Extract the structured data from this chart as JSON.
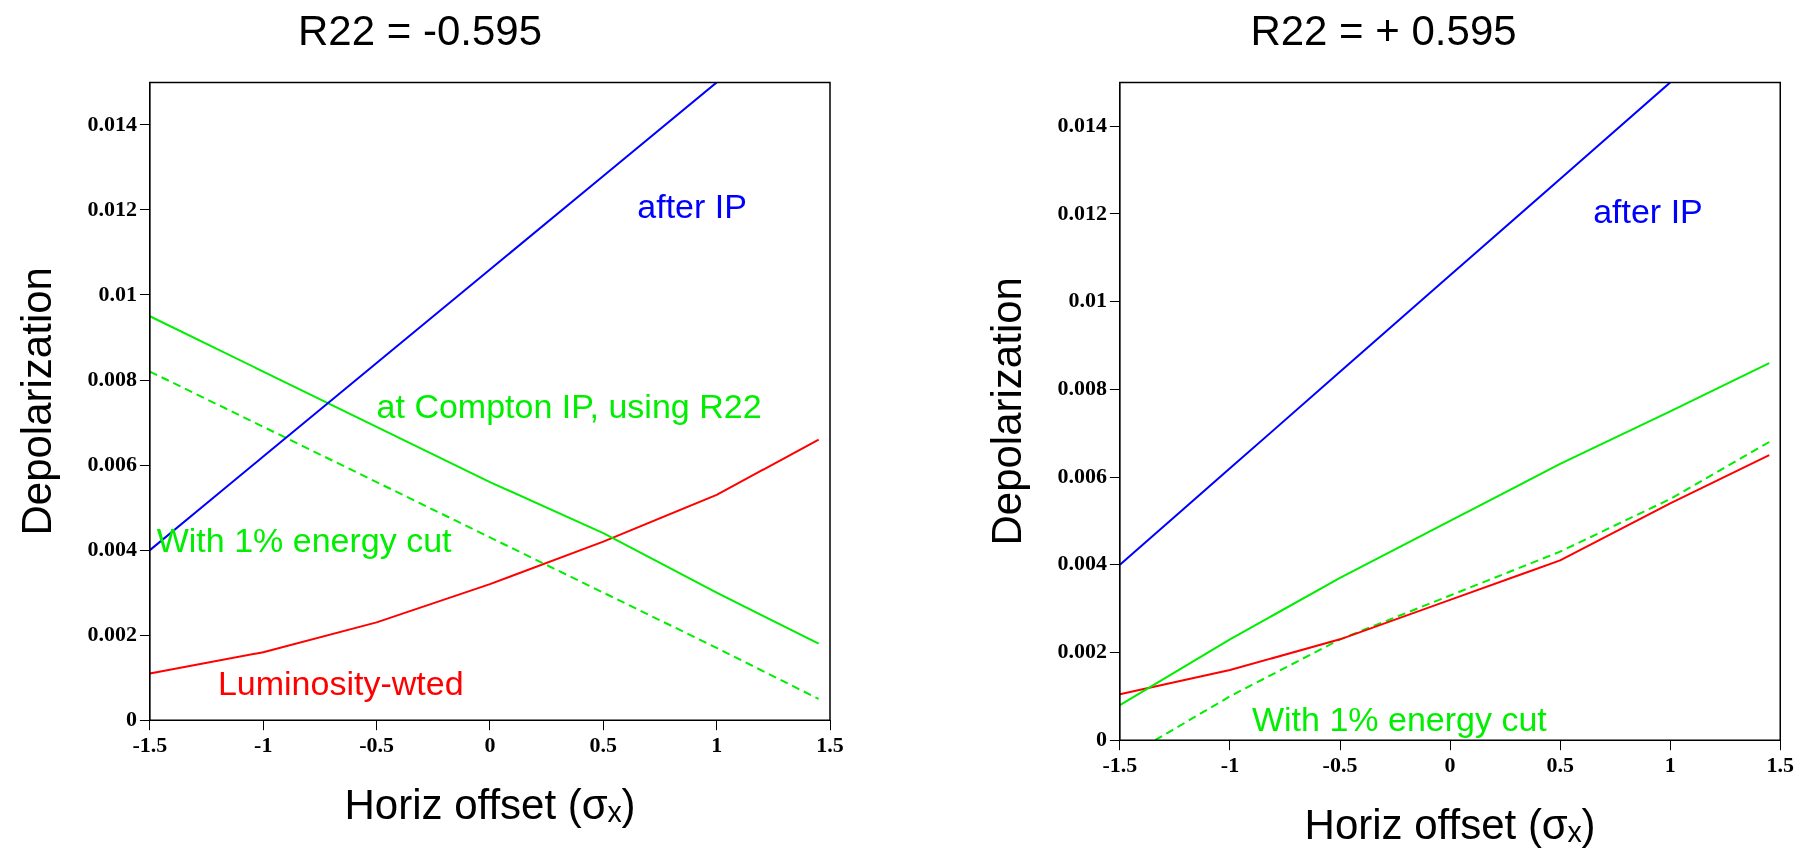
{
  "chart_data": [
    {
      "type": "line",
      "title": "R22 = -0.595",
      "xlabel": "Horiz offset (σₓ)",
      "ylabel": "Depolarization",
      "xlim": [
        -1.5,
        1.5
      ],
      "xticks": [
        -1.5,
        -1,
        -0.5,
        0,
        0.5,
        1,
        1.5
      ],
      "ylim": [
        0,
        0.015
      ],
      "yticks": [
        0,
        0.002,
        0.004,
        0.006,
        0.008,
        0.01,
        0.012,
        0.014
      ],
      "grid": false,
      "legend": false,
      "marker": "none",
      "series": [
        {
          "name": "after IP",
          "color": "#0000ff",
          "x": [
            -1.5,
            -1,
            -0.5,
            0,
            0.5,
            1
          ],
          "values": [
            0.004,
            0.0062,
            0.0084,
            0.0106,
            0.0128,
            0.015
          ]
        },
        {
          "name": "at Compton IP, using R22",
          "color": "#00ee00",
          "x": [
            -1.5,
            -1,
            -0.5,
            0,
            0.5,
            1,
            1.45
          ],
          "values": [
            0.0095,
            0.0082,
            0.0069,
            0.0056,
            0.0044,
            0.003,
            0.0018
          ]
        },
        {
          "name": "With 1% energy cut",
          "color": "#00ee00",
          "line_style": "dashed",
          "x": [
            -1.5,
            -1,
            -0.5,
            0,
            0.5,
            1,
            1.45
          ],
          "values": [
            0.0082,
            0.0069,
            0.0056,
            0.0043,
            0.003,
            0.0017,
            0.0005
          ]
        },
        {
          "name": "Luminosity-wted",
          "color": "#ff0000",
          "x": [
            -1.5,
            -1,
            -0.5,
            0,
            0.5,
            1,
            1.45
          ],
          "values": [
            0.0011,
            0.0016,
            0.0023,
            0.0032,
            0.0042,
            0.0053,
            0.0066
          ]
        }
      ]
    },
    {
      "type": "line",
      "title": "R22 = + 0.595",
      "xlabel": "Horiz offset (σₓ)",
      "ylabel": "Depolarization",
      "xlim": [
        -1.5,
        1.5
      ],
      "xticks": [
        -1.5,
        -1,
        -0.5,
        0,
        0.5,
        1,
        1.5
      ],
      "ylim": [
        0,
        0.015
      ],
      "yticks": [
        0,
        0.002,
        0.004,
        0.006,
        0.008,
        0.01,
        0.012,
        0.014
      ],
      "grid": false,
      "legend": false,
      "marker": "none",
      "series": [
        {
          "name": "after IP",
          "color": "#0000ff",
          "x": [
            -1.5,
            -1,
            -0.5,
            0,
            0.5,
            1
          ],
          "values": [
            0.004,
            0.0062,
            0.0084,
            0.0106,
            0.0128,
            0.015
          ]
        },
        {
          "color": "#00ee00",
          "x": [
            -1.5,
            -1,
            -0.5,
            0,
            0.5,
            1,
            1.45
          ],
          "values": [
            0.0008,
            0.0023,
            0.0037,
            0.005,
            0.0063,
            0.0075,
            0.0086
          ]
        },
        {
          "color": "#ff0000",
          "x": [
            -1.5,
            -1,
            -0.5,
            0,
            0.5,
            1,
            1.45
          ],
          "values": [
            0.00105,
            0.0016,
            0.0023,
            0.0032,
            0.0041,
            0.0054,
            0.0065
          ]
        },
        {
          "name": "With 1% energy cut",
          "color": "#00ee00",
          "line_style": "dashed",
          "x": [
            -1.34,
            -1,
            -0.5,
            0,
            0.5,
            1,
            1.45
          ],
          "values": [
            0,
            0.001,
            0.0023,
            0.0033,
            0.0043,
            0.0055,
            0.0068
          ]
        }
      ]
    }
  ]
}
